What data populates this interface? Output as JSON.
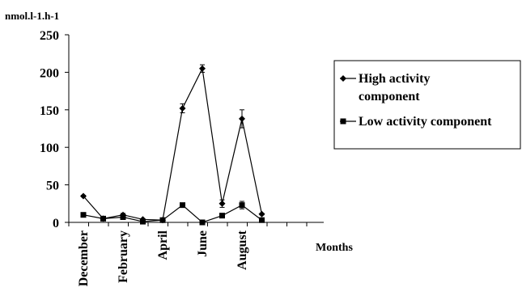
{
  "chart_data": {
    "type": "line",
    "y_unit_label": "nmol.l-1.h-1",
    "xlabel": "Months",
    "x_positions": 13,
    "x_tick_labels": [
      {
        "label": "December",
        "index": 0
      },
      {
        "label": "February",
        "index": 2
      },
      {
        "label": "April",
        "index": 4
      },
      {
        "label": "June",
        "index": 6
      },
      {
        "label": "August",
        "index": 8
      }
    ],
    "ylim": [
      0,
      250
    ],
    "yticks": [
      0,
      50,
      100,
      150,
      200,
      250
    ],
    "grid": false,
    "legend_position": "right",
    "series": [
      {
        "name": "High activity component",
        "marker": "diamond",
        "color": "#000000",
        "x": [
          0,
          1,
          2,
          3,
          4,
          5,
          6,
          7,
          8,
          9
        ],
        "values": [
          35,
          5,
          10,
          4,
          3,
          152,
          205,
          25,
          138,
          11
        ],
        "errors": [
          1,
          0,
          2,
          0,
          0,
          6,
          5,
          5,
          12,
          1
        ]
      },
      {
        "name": "Low activity component",
        "marker": "square",
        "color": "#000000",
        "x": [
          0,
          1,
          2,
          3,
          4,
          5,
          6,
          7,
          8,
          9
        ],
        "values": [
          10,
          5,
          7,
          1,
          3,
          23,
          0,
          9,
          23,
          3
        ],
        "errors": [
          0,
          0,
          0,
          0,
          0,
          1,
          0,
          0,
          5,
          0
        ]
      }
    ]
  }
}
